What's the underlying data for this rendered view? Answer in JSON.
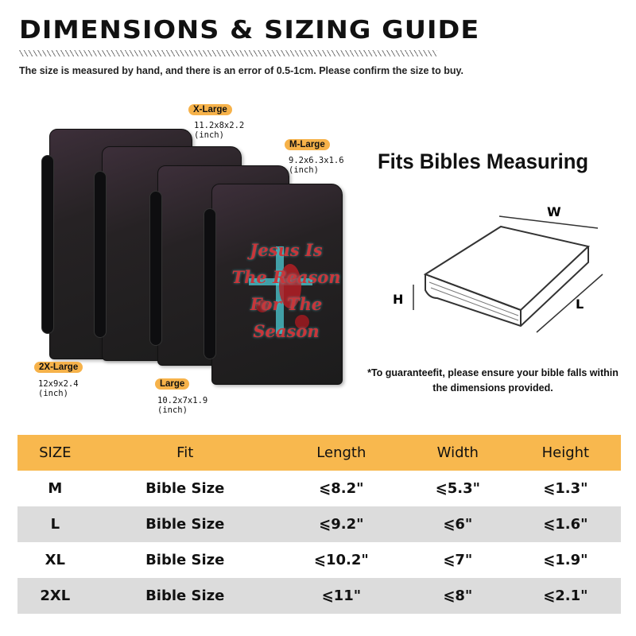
{
  "header": {
    "title": "DIMENSIONS & SIZING GUIDE",
    "note": "The size is measured by hand, and there is an error of 0.5-1cm. Please confirm the size to buy."
  },
  "sizes": [
    {
      "label": "X-Large",
      "dims": "11.2x8x2.2",
      "unit": "(inch)"
    },
    {
      "label": "M-Large",
      "dims": "9.2x6.3x1.6",
      "unit": "(inch)"
    },
    {
      "label": "2X-Large",
      "dims": "12x9x2.4",
      "unit": "(inch)"
    },
    {
      "label": "Large",
      "dims": "10.2x7x1.9",
      "unit": "(inch)"
    }
  ],
  "cover_art_text": "Jesus Is The Reason For The Season",
  "fits": {
    "title": "Fits Bibles Measuring",
    "w": "W",
    "h": "H",
    "l": "L",
    "note": "*To guaranteefit, please ensure your bible falls within the dimensions provided."
  },
  "table": {
    "headers": [
      "SIZE",
      "Fit",
      "Length",
      "Width",
      "Height"
    ],
    "rows": [
      [
        "M",
        "Bible Size",
        "⩽8.2\"",
        "⩽5.3\"",
        "⩽1.3\""
      ],
      [
        "L",
        "Bible Size",
        "⩽9.2\"",
        "⩽6\"",
        "⩽1.6\""
      ],
      [
        "XL",
        "Bible Size",
        "⩽10.2\"",
        "⩽7\"",
        "⩽1.9\""
      ],
      [
        "2XL",
        "Bible Size",
        "⩽11\"",
        "⩽8\"",
        "⩽2.1\""
      ]
    ]
  },
  "colors": {
    "accent": "#f6b24a",
    "row_alt": "#dcdcdc"
  }
}
